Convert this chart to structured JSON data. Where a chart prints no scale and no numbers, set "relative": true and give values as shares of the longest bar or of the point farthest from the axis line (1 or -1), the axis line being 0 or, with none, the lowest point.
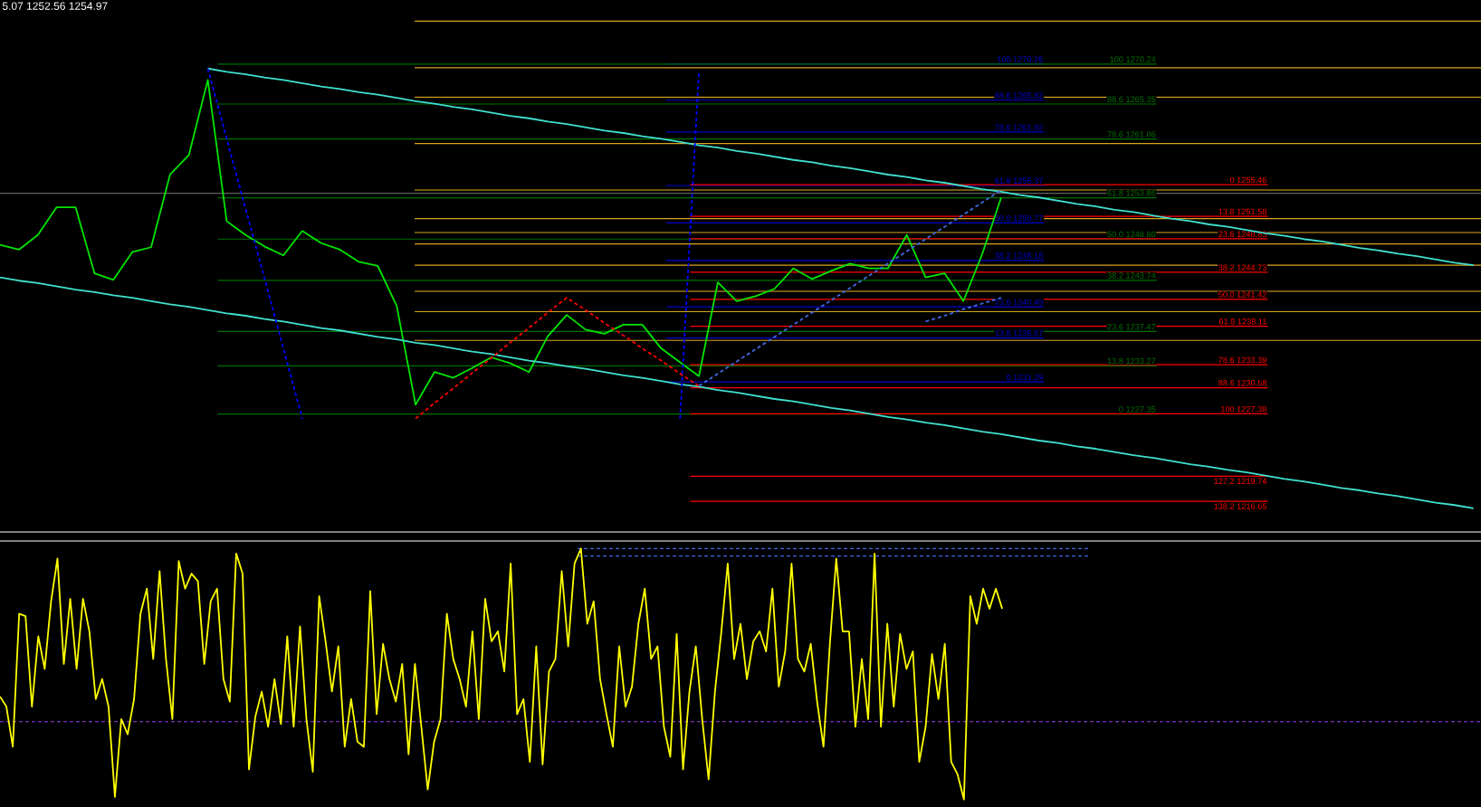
{
  "chart_data": [
    {
      "type": "line",
      "annotations": [
        "5.07 1252.56 1254.97"
      ],
      "ylim": [
        1212.9,
        1278.1
      ],
      "tick_labels": false,
      "categories": [
        null,
        null,
        null,
        null,
        null,
        null,
        null,
        null,
        null,
        null,
        null,
        null,
        null,
        null,
        null,
        null,
        null,
        null,
        null,
        null,
        null,
        null,
        null,
        null,
        null,
        null,
        null,
        null,
        null,
        null,
        null,
        null,
        null,
        null,
        null,
        null,
        null,
        null,
        null,
        null,
        null,
        null,
        null,
        null,
        null,
        null,
        null,
        null,
        null,
        null,
        null,
        null,
        null,
        null,
        null,
        null,
        null,
        null,
        null,
        null,
        null,
        null,
        null,
        null,
        null,
        null,
        null,
        null,
        null,
        null,
        null,
        null,
        null,
        null,
        null,
        null,
        null,
        null,
        null
      ],
      "series": [
        {
          "color": "#00e600",
          "values": [
            1248.1,
            1247.5,
            1249.3,
            1252.7,
            1252.7,
            1244.6,
            1243.8,
            1247.2,
            1247.8,
            1256.7,
            1259.1,
            1268.3,
            1251.0,
            1249.3,
            1247.9,
            1246.8,
            1249.8,
            1248.3,
            1247.5,
            1246.0,
            1245.5,
            1240.6,
            1228.5,
            1232.5,
            1231.8,
            1233.0,
            1234.3,
            1233.6,
            1232.5,
            1236.9,
            1239.5,
            1237.7,
            1237.2,
            1238.3,
            1238.3,
            1235.4,
            1233.7,
            1232.0,
            1243.5,
            1241.2,
            1241.8,
            1242.7,
            1245.2,
            1243.9,
            1244.9,
            1245.8,
            1245.2,
            1245.2,
            1249.3,
            1244.1,
            1244.6,
            1241.2,
            1247.0,
            1253.9,
            null,
            null,
            null,
            null,
            null,
            null,
            null,
            null,
            null,
            null,
            null,
            null,
            null,
            null,
            null,
            null,
            null,
            null,
            null,
            null,
            null,
            null,
            null,
            null,
            null
          ]
        },
        {
          "color": "#40e0d0",
          "values": [
            null,
            null,
            null,
            null,
            null,
            null,
            null,
            null,
            null,
            null,
            null,
            1269.7,
            1269.3,
            1269.0,
            1268.6,
            1268.3,
            1267.9,
            1267.5,
            1267.2,
            1266.8,
            1266.5,
            1266.1,
            1265.7,
            1265.4,
            1265.0,
            1264.7,
            1264.3,
            1263.9,
            1263.6,
            1263.2,
            1262.9,
            1262.5,
            1262.1,
            1261.8,
            1261.4,
            1261.1,
            1260.7,
            1260.3,
            1260.0,
            1259.6,
            1259.3,
            1258.9,
            1258.5,
            1258.2,
            1257.8,
            1257.5,
            1257.1,
            1256.7,
            1256.4,
            1256.0,
            1255.7,
            1255.3,
            1254.9,
            1254.6,
            1254.2,
            1253.9,
            1253.5,
            1253.1,
            1252.8,
            1252.4,
            1252.1,
            1251.7,
            1251.3,
            1251.0,
            1250.6,
            1250.3,
            1249.9,
            1249.5,
            1249.2,
            1248.8,
            1248.5,
            1248.1,
            1247.7,
            1247.4,
            1247.0,
            1246.7,
            1246.3,
            1245.9,
            1245.6
          ]
        },
        {
          "color": "#40e0d0",
          "values": [
            1244.1,
            1243.7,
            1243.4,
            1243.0,
            1242.6,
            1242.3,
            1241.9,
            1241.6,
            1241.2,
            1240.8,
            1240.5,
            1240.1,
            1239.7,
            1239.4,
            1239.0,
            1238.7,
            1238.3,
            1237.9,
            1237.6,
            1237.2,
            1236.8,
            1236.5,
            1236.1,
            1235.8,
            1235.4,
            1235.0,
            1234.7,
            1234.3,
            1233.9,
            1233.6,
            1233.2,
            1232.9,
            1232.5,
            1232.1,
            1231.8,
            1231.4,
            1231.0,
            1230.7,
            1230.3,
            1230.0,
            1229.6,
            1229.2,
            1228.9,
            1228.5,
            1228.1,
            1227.8,
            1227.4,
            1227.0,
            1226.7,
            1226.3,
            1226.0,
            1225.6,
            1225.2,
            1224.9,
            1224.5,
            1224.1,
            1223.8,
            1223.4,
            1223.1,
            1222.7,
            1222.3,
            1222.0,
            1221.6,
            1221.2,
            1220.9,
            1220.5,
            1220.2,
            1219.8,
            1219.4,
            1219.1,
            1218.7,
            1218.3,
            1218.0,
            1217.6,
            1217.3,
            1216.9,
            1216.5,
            1216.2,
            1215.8
          ]
        },
        {
          "color": "#0000ff",
          "line_style": "dashed",
          "values": [
            null,
            null,
            null,
            null,
            null,
            null,
            null,
            null,
            null,
            null,
            null,
            1269.7,
            1261.1,
            1252.5,
            1244.0,
            1235.4,
            1226.8,
            null,
            null,
            null,
            null,
            null,
            null,
            null,
            null,
            null,
            null,
            null,
            null,
            null,
            null,
            null,
            null,
            null,
            null,
            null,
            null,
            null,
            null,
            null,
            null,
            null,
            null,
            null,
            null,
            null,
            null,
            null,
            null,
            null,
            null,
            null,
            null,
            null,
            null,
            null,
            null,
            null,
            null,
            null,
            null,
            null,
            null,
            null,
            null,
            null,
            null,
            null,
            null,
            null,
            null,
            null,
            null,
            null,
            null,
            null,
            null,
            null,
            null
          ]
        },
        {
          "color": "#0000ff",
          "line_style": "dashed",
          "values": [
            null,
            null,
            null,
            null,
            null,
            null,
            null,
            null,
            null,
            null,
            null,
            null,
            null,
            null,
            null,
            null,
            null,
            null,
            null,
            null,
            null,
            null,
            null,
            null,
            null,
            null,
            null,
            null,
            null,
            null,
            null,
            null,
            null,
            null,
            null,
            null,
            1226.8,
            1269.4,
            null,
            null,
            null,
            null,
            null,
            null,
            null,
            null,
            null,
            null,
            null,
            null,
            null,
            null,
            null,
            null,
            null,
            null,
            null,
            null,
            null,
            null,
            null,
            null,
            null,
            null,
            null,
            null,
            null,
            null,
            null,
            null,
            null,
            null,
            null,
            null,
            null,
            null,
            null,
            null,
            null
          ]
        },
        {
          "color": "#ff0000",
          "line_style": "dashed",
          "values": [
            null,
            null,
            null,
            null,
            null,
            null,
            null,
            null,
            null,
            null,
            null,
            null,
            null,
            null,
            null,
            null,
            null,
            null,
            null,
            null,
            null,
            null,
            1226.8,
            1228.7,
            1230.5,
            1232.4,
            1234.2,
            1236.1,
            1237.9,
            1239.8,
            1241.6,
            1240.1,
            1238.5,
            1237.0,
            1235.4,
            1233.9,
            1232.3,
            1230.8,
            null,
            null,
            null,
            null,
            null,
            null,
            null,
            null,
            null,
            null,
            null,
            null,
            null,
            null,
            null,
            null,
            null,
            null,
            null,
            null,
            null,
            null,
            null,
            null,
            null,
            null,
            null,
            null,
            null,
            null,
            null,
            null,
            null,
            null,
            null,
            null,
            null,
            null,
            null,
            null,
            null
          ]
        },
        {
          "color": "#4169e1",
          "line_style": "dashed",
          "values": [
            null,
            null,
            null,
            null,
            null,
            null,
            null,
            null,
            null,
            null,
            null,
            null,
            null,
            null,
            null,
            null,
            null,
            null,
            null,
            null,
            null,
            null,
            null,
            null,
            null,
            null,
            null,
            null,
            null,
            null,
            null,
            null,
            null,
            null,
            null,
            null,
            null,
            1230.8,
            1232.3,
            1233.8,
            1235.3,
            1236.8,
            1238.3,
            1239.8,
            1241.3,
            1242.8,
            1244.3,
            1245.8,
            1247.3,
            1248.8,
            1250.3,
            1251.8,
            1253.3,
            1254.8,
            null,
            null,
            null,
            null,
            null,
            null,
            null,
            null,
            null,
            null,
            null,
            null,
            null,
            null,
            null,
            null,
            null,
            null,
            null,
            null,
            null,
            null,
            null,
            null,
            null
          ]
        },
        {
          "color": "#4169e1",
          "line_style": "dashed",
          "values": [
            null,
            null,
            null,
            null,
            null,
            null,
            null,
            null,
            null,
            null,
            null,
            null,
            null,
            null,
            null,
            null,
            null,
            null,
            null,
            null,
            null,
            null,
            null,
            null,
            null,
            null,
            null,
            null,
            null,
            null,
            null,
            null,
            null,
            null,
            null,
            null,
            null,
            null,
            null,
            null,
            null,
            null,
            null,
            null,
            null,
            null,
            null,
            null,
            null,
            1238.7,
            1239.4,
            1240.2,
            1240.9,
            1241.6,
            null,
            null,
            null,
            null,
            null,
            null,
            null,
            null,
            null,
            null,
            null,
            null,
            null,
            null,
            null,
            null,
            null,
            null,
            null,
            null,
            null,
            null,
            null,
            null,
            null
          ]
        }
      ],
      "ref_lines": [
        {
          "axis": "y",
          "value": 1270.26,
          "label": "100 1270.26",
          "color": "#0000cc"
        },
        {
          "axis": "y",
          "value": 1265.82,
          "label": "88.6 1265.82",
          "color": "#0000cc"
        },
        {
          "axis": "y",
          "value": 1261.92,
          "label": "78.6 1261.92",
          "color": "#0000cc"
        },
        {
          "axis": "y",
          "value": 1255.37,
          "label": "61.8 1255.37",
          "color": "#0000cc"
        },
        {
          "axis": "y",
          "value": 1250.77,
          "label": "50.0 1250.77",
          "color": "#0000cc"
        },
        {
          "axis": "y",
          "value": 1246.18,
          "label": "38.2 1246.18",
          "color": "#0000cc"
        },
        {
          "axis": "y",
          "value": 1240.49,
          "label": "23.6 1240.49",
          "color": "#0000cc"
        },
        {
          "axis": "y",
          "value": 1236.67,
          "label": "13.8 1236.67",
          "color": "#0000cc"
        },
        {
          "axis": "y",
          "value": 1231.29,
          "label": "0 1231.29",
          "color": "#0000cc"
        },
        {
          "axis": "y",
          "value": 1270.24,
          "label": "100 1270.24",
          "color": "#007000"
        },
        {
          "axis": "y",
          "value": 1265.35,
          "label": "88.6 1265.35",
          "color": "#007000"
        },
        {
          "axis": "y",
          "value": 1261.06,
          "label": "78.6 1261.06",
          "color": "#007000"
        },
        {
          "axis": "y",
          "value": 1253.86,
          "label": "61.8 1253.86",
          "color": "#007000"
        },
        {
          "axis": "y",
          "value": 1248.8,
          "label": "50.0 1248.80",
          "color": "#007000"
        },
        {
          "axis": "y",
          "value": 1243.74,
          "label": "38.2 1243.74",
          "color": "#007000"
        },
        {
          "axis": "y",
          "value": 1237.47,
          "label": "23.6 1237.47",
          "color": "#007000"
        },
        {
          "axis": "y",
          "value": 1233.27,
          "label": "13.8 1233.27",
          "color": "#007000"
        },
        {
          "axis": "y",
          "value": 1227.35,
          "label": "0 1227.35",
          "color": "#007000"
        },
        {
          "axis": "y",
          "value": 1255.46,
          "label": "0 1255.46",
          "color": "#ff0000"
        },
        {
          "axis": "y",
          "value": 1251.58,
          "label": "13.8 1251.58",
          "color": "#ff0000"
        },
        {
          "axis": "y",
          "value": 1248.83,
          "label": "23.6 1248.83",
          "color": "#ff0000"
        },
        {
          "axis": "y",
          "value": 1244.73,
          "label": "38.2 1244.73",
          "color": "#ff0000"
        },
        {
          "axis": "y",
          "value": 1241.42,
          "label": "50.0 1241.42",
          "color": "#ff0000"
        },
        {
          "axis": "y",
          "value": 1238.11,
          "label": "61.8 1238.11",
          "color": "#ff0000"
        },
        {
          "axis": "y",
          "value": 1233.39,
          "label": "78.6 1233.39",
          "color": "#ff0000"
        },
        {
          "axis": "y",
          "value": 1230.58,
          "label": "88.6 1230.58",
          "color": "#ff0000"
        },
        {
          "axis": "y",
          "value": 1227.38,
          "label": "100 1227.38",
          "color": "#ff0000"
        },
        {
          "axis": "y",
          "value": 1219.74,
          "label": "127.2 1219.74",
          "color": "#ff0000"
        },
        {
          "axis": "y",
          "value": 1216.65,
          "label": "138.2 1216.65",
          "color": "#ff0000"
        },
        {
          "axis": "y",
          "value": 1275.5,
          "color": "#daa520"
        },
        {
          "axis": "y",
          "value": 1269.8,
          "color": "#daa520"
        },
        {
          "axis": "y",
          "value": 1266.2,
          "color": "#daa520"
        },
        {
          "axis": "y",
          "value": 1260.5,
          "color": "#daa520"
        },
        {
          "axis": "y",
          "value": 1254.8,
          "color": "#daa520"
        },
        {
          "axis": "y",
          "value": 1251.3,
          "color": "#daa520"
        },
        {
          "axis": "y",
          "value": 1249.6,
          "color": "#daa520"
        },
        {
          "axis": "y",
          "value": 1248.2,
          "color": "#daa520"
        },
        {
          "axis": "y",
          "value": 1245.6,
          "color": "#daa520"
        },
        {
          "axis": "y",
          "value": 1242.4,
          "color": "#daa520"
        },
        {
          "axis": "y",
          "value": 1239.9,
          "color": "#daa520"
        },
        {
          "axis": "y",
          "value": 1236.4,
          "color": "#daa520"
        },
        {
          "axis": "y",
          "value": 1254.4,
          "color": "#808080"
        }
      ]
    },
    {
      "type": "line",
      "relative": true,
      "tick_labels": false,
      "categories": [
        null,
        null,
        null,
        null,
        null,
        null,
        null,
        null,
        null,
        null,
        null,
        null,
        null,
        null,
        null,
        null,
        null,
        null,
        null,
        null,
        null,
        null,
        null,
        null,
        null,
        null,
        null,
        null,
        null,
        null,
        null,
        null,
        null,
        null,
        null,
        null,
        null,
        null,
        null,
        null,
        null,
        null,
        null,
        null,
        null,
        null,
        null,
        null,
        null,
        null,
        null,
        null,
        null,
        null,
        null,
        null,
        null,
        null,
        null,
        null,
        null,
        null,
        null,
        null,
        null,
        null,
        null,
        null,
        null,
        null,
        null,
        null,
        null,
        null,
        null,
        null,
        null,
        null,
        null,
        null,
        null,
        null,
        null,
        null,
        null,
        null,
        null,
        null,
        null,
        null,
        null,
        null,
        null,
        null,
        null,
        null,
        null,
        null,
        null,
        null,
        null,
        null,
        null,
        null,
        null,
        null,
        null,
        null,
        null,
        null,
        null,
        null,
        null,
        null,
        null,
        null,
        null,
        null,
        null,
        null,
        null,
        null,
        null,
        null,
        null,
        null,
        null,
        null,
        null,
        null,
        null,
        null,
        null,
        null,
        null,
        null,
        null,
        null,
        null,
        null,
        null,
        null,
        null,
        null,
        null,
        null,
        null,
        null,
        null,
        null,
        null,
        null,
        null,
        null,
        null,
        null,
        null,
        null,
        null,
        null,
        null,
        null,
        null,
        null,
        null,
        null,
        null,
        null,
        null,
        null,
        null,
        null,
        null,
        null,
        null,
        null,
        null,
        null,
        null,
        null,
        null,
        null,
        null,
        null,
        null,
        null,
        null,
        null,
        null,
        null,
        null,
        null,
        null,
        null,
        null,
        null,
        null,
        null,
        null,
        null,
        null,
        null,
        null,
        null,
        null,
        null,
        null,
        null,
        null,
        null,
        null,
        null,
        null,
        null,
        null,
        null,
        null,
        null,
        null,
        null,
        null,
        null,
        null,
        null,
        null,
        null,
        null,
        null,
        null,
        null,
        null,
        null,
        null
      ],
      "series": [
        {
          "color": "#ffff00",
          "values": [
            0.41,
            0.37,
            0.21,
            0.74,
            0.73,
            0.37,
            0.65,
            0.52,
            0.79,
            0.96,
            0.54,
            0.8,
            0.52,
            0.8,
            0.67,
            0.4,
            0.48,
            0.37,
            0.01,
            0.32,
            0.26,
            0.4,
            0.74,
            0.84,
            0.56,
            0.91,
            0.56,
            0.32,
            0.95,
            0.84,
            0.9,
            0.87,
            0.54,
            0.79,
            0.84,
            0.48,
            0.39,
            0.98,
            0.9,
            0.12,
            0.33,
            0.43,
            0.29,
            0.48,
            0.3,
            0.65,
            0.29,
            0.69,
            0.32,
            0.11,
            0.81,
            0.63,
            0.43,
            0.61,
            0.21,
            0.4,
            0.23,
            0.21,
            0.83,
            0.34,
            0.62,
            0.48,
            0.39,
            0.54,
            0.18,
            0.54,
            0.29,
            0.04,
            0.23,
            0.32,
            0.74,
            0.56,
            0.48,
            0.37,
            0.67,
            0.32,
            0.8,
            0.63,
            0.67,
            0.51,
            0.94,
            0.34,
            0.4,
            0.15,
            0.61,
            0.14,
            0.51,
            0.56,
            0.91,
            0.61,
            0.94,
            1,
            0.7,
            0.79,
            0.48,
            0.34,
            0.21,
            0.61,
            0.37,
            0.45,
            0.7,
            0.84,
            0.56,
            0.61,
            0.29,
            0.17,
            0.66,
            0.12,
            0.43,
            0.61,
            0.32,
            0.08,
            0.43,
            0.67,
            0.94,
            0.56,
            0.7,
            0.48,
            0.63,
            0.67,
            0.59,
            0.84,
            0.45,
            0.59,
            0.94,
            0.56,
            0.51,
            0.62,
            0.39,
            0.21,
            0.62,
            0.96,
            0.67,
            0.67,
            0.29,
            0.56,
            0.32,
            0.98,
            0.29,
            0.7,
            0.37,
            0.66,
            0.52,
            0.59,
            0.15,
            0.29,
            0.58,
            0.4,
            0.62,
            0.15,
            0.1,
            0,
            0.81,
            0.7,
            0.84,
            0.76,
            0.84,
            0.76,
            null,
            null,
            null,
            null,
            null,
            null,
            null,
            null,
            null,
            null,
            null,
            null,
            null,
            null,
            null,
            null,
            null,
            null,
            null,
            null,
            null,
            null,
            null,
            null,
            null,
            null,
            null,
            null,
            null,
            null,
            null,
            null,
            null,
            null,
            null,
            null,
            null,
            null,
            null,
            null,
            null,
            null,
            null,
            null,
            null,
            null,
            null,
            null,
            null,
            null,
            null,
            null,
            null,
            null,
            null,
            null,
            null,
            null,
            null,
            null,
            null,
            null,
            null,
            null,
            null,
            null,
            null,
            null,
            null,
            null,
            null,
            null,
            null,
            null,
            null
          ]
        }
      ],
      "ref_lines": [
        {
          "axis": "y",
          "value": 0.31,
          "color": "#7b2fbe",
          "line_style": "dashed"
        },
        {
          "axis": "y",
          "value": 1,
          "color": "#4169e1",
          "line_style": "dashed"
        },
        {
          "axis": "y",
          "value": 0.97,
          "color": "#4169e1",
          "line_style": "dashed"
        }
      ]
    }
  ]
}
